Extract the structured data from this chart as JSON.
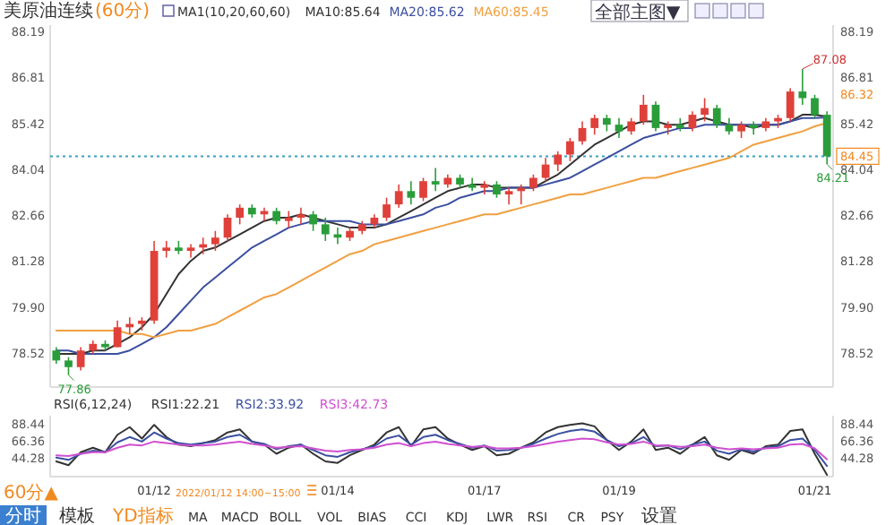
{
  "chart_data": [
    {
      "type": "candlestick",
      "title": "美原油连续",
      "subtitle": "(60分)",
      "legend_title": "MA1(10,20,60,60)",
      "legend": "top",
      "tick_labels": "y",
      "ohlc": [
        [
          78.6,
          78.7,
          78.2,
          78.3
        ],
        [
          78.3,
          78.4,
          77.86,
          78.1
        ],
        [
          78.1,
          78.7,
          78.0,
          78.6
        ],
        [
          78.6,
          78.9,
          78.5,
          78.8
        ],
        [
          78.8,
          78.9,
          78.6,
          78.7
        ],
        [
          78.7,
          79.5,
          78.7,
          79.3
        ],
        [
          79.3,
          79.6,
          79.1,
          79.4
        ],
        [
          79.4,
          79.6,
          79.2,
          79.5
        ],
        [
          79.5,
          81.9,
          79.4,
          81.6
        ],
        [
          81.6,
          81.9,
          81.4,
          81.7
        ],
        [
          81.7,
          81.9,
          81.5,
          81.6
        ],
        [
          81.6,
          81.8,
          81.4,
          81.7
        ],
        [
          81.7,
          82.0,
          81.5,
          81.8
        ],
        [
          81.8,
          82.2,
          81.6,
          82.0
        ],
        [
          82.0,
          82.7,
          81.9,
          82.6
        ],
        [
          82.6,
          83.0,
          82.4,
          82.9
        ],
        [
          82.9,
          83.0,
          82.6,
          82.7
        ],
        [
          82.7,
          82.9,
          82.5,
          82.8
        ],
        [
          82.8,
          82.9,
          82.4,
          82.5
        ],
        [
          82.5,
          82.8,
          82.3,
          82.6
        ],
        [
          82.6,
          82.9,
          82.4,
          82.7
        ],
        [
          82.7,
          82.8,
          82.2,
          82.4
        ],
        [
          82.4,
          82.6,
          81.9,
          82.1
        ],
        [
          82.1,
          82.3,
          81.8,
          82.0
        ],
        [
          82.0,
          82.3,
          81.9,
          82.2
        ],
        [
          82.2,
          82.5,
          82.1,
          82.4
        ],
        [
          82.4,
          82.7,
          82.3,
          82.6
        ],
        [
          82.6,
          83.2,
          82.5,
          83.0
        ],
        [
          83.0,
          83.6,
          82.9,
          83.4
        ],
        [
          83.4,
          83.7,
          83.0,
          83.2
        ],
        [
          83.2,
          83.8,
          83.1,
          83.7
        ],
        [
          83.7,
          84.1,
          83.4,
          83.6
        ],
        [
          83.6,
          83.9,
          83.5,
          83.8
        ],
        [
          83.8,
          83.9,
          83.5,
          83.6
        ],
        [
          83.6,
          83.8,
          83.4,
          83.5
        ],
        [
          83.5,
          83.7,
          83.3,
          83.6
        ],
        [
          83.6,
          83.7,
          83.2,
          83.3
        ],
        [
          83.3,
          83.5,
          83.0,
          83.4
        ],
        [
          83.4,
          83.6,
          83.0,
          83.5
        ],
        [
          83.5,
          83.9,
          83.4,
          83.8
        ],
        [
          83.8,
          84.4,
          83.7,
          84.2
        ],
        [
          84.2,
          84.6,
          84.0,
          84.5
        ],
        [
          84.5,
          85.0,
          84.3,
          84.9
        ],
        [
          84.9,
          85.5,
          84.8,
          85.3
        ],
        [
          85.3,
          85.7,
          85.1,
          85.6
        ],
        [
          85.6,
          85.7,
          85.2,
          85.4
        ],
        [
          85.4,
          85.6,
          85.0,
          85.2
        ],
        [
          85.2,
          85.6,
          85.1,
          85.5
        ],
        [
          85.5,
          86.3,
          85.4,
          86.0
        ],
        [
          86.0,
          86.1,
          85.2,
          85.3
        ],
        [
          85.3,
          85.5,
          85.1,
          85.4
        ],
        [
          85.4,
          85.6,
          85.2,
          85.3
        ],
        [
          85.3,
          85.8,
          85.2,
          85.7
        ],
        [
          85.7,
          86.2,
          85.5,
          85.9
        ],
        [
          85.9,
          86.0,
          85.3,
          85.4
        ],
        [
          85.4,
          85.6,
          85.1,
          85.2
        ],
        [
          85.2,
          85.5,
          85.0,
          85.4
        ],
        [
          85.4,
          85.5,
          85.1,
          85.3
        ],
        [
          85.3,
          85.6,
          85.2,
          85.5
        ],
        [
          85.5,
          85.7,
          85.3,
          85.6
        ],
        [
          85.6,
          86.5,
          85.5,
          86.4
        ],
        [
          86.4,
          87.08,
          86.0,
          86.2
        ],
        [
          86.2,
          86.3,
          85.6,
          85.7
        ],
        [
          85.7,
          85.8,
          84.21,
          84.45
        ]
      ],
      "series": [
        {
          "name": "MA10:85.64",
          "type": "line",
          "color": "#333333",
          "values": [
            78.5,
            78.5,
            78.5,
            78.6,
            78.6,
            78.8,
            79.0,
            79.3,
            79.7,
            80.3,
            80.9,
            81.3,
            81.6,
            81.7,
            81.9,
            82.1,
            82.3,
            82.5,
            82.6,
            82.6,
            82.7,
            82.6,
            82.5,
            82.4,
            82.3,
            82.3,
            82.3,
            82.4,
            82.6,
            82.8,
            83.0,
            83.2,
            83.4,
            83.5,
            83.6,
            83.6,
            83.5,
            83.5,
            83.5,
            83.5,
            83.7,
            83.9,
            84.2,
            84.5,
            84.8,
            85.0,
            85.2,
            85.4,
            85.5,
            85.5,
            85.4,
            85.4,
            85.5,
            85.6,
            85.5,
            85.4,
            85.4,
            85.3,
            85.4,
            85.4,
            85.5,
            85.7,
            85.7,
            85.64
          ]
        },
        {
          "name": "MA20:85.62",
          "type": "line",
          "color": "#3b4fa0",
          "values": [
            78.6,
            78.6,
            78.5,
            78.5,
            78.5,
            78.5,
            78.6,
            78.8,
            79.0,
            79.3,
            79.7,
            80.1,
            80.5,
            80.8,
            81.1,
            81.4,
            81.7,
            81.9,
            82.1,
            82.3,
            82.4,
            82.5,
            82.5,
            82.5,
            82.5,
            82.4,
            82.4,
            82.4,
            82.5,
            82.6,
            82.7,
            82.9,
            83.0,
            83.2,
            83.3,
            83.4,
            83.4,
            83.5,
            83.5,
            83.5,
            83.6,
            83.7,
            83.8,
            84.0,
            84.2,
            84.4,
            84.6,
            84.8,
            85.0,
            85.1,
            85.2,
            85.3,
            85.3,
            85.4,
            85.4,
            85.4,
            85.4,
            85.4,
            85.4,
            85.4,
            85.5,
            85.6,
            85.6,
            85.62
          ]
        },
        {
          "name": "MA60:85.45",
          "type": "line",
          "color": "#f0a040",
          "values": [
            79.2,
            79.2,
            79.2,
            79.2,
            79.2,
            79.2,
            79.1,
            79.1,
            79.0,
            79.1,
            79.2,
            79.2,
            79.3,
            79.4,
            79.6,
            79.8,
            80.0,
            80.2,
            80.3,
            80.5,
            80.7,
            80.9,
            81.1,
            81.3,
            81.5,
            81.6,
            81.8,
            81.9,
            82.0,
            82.1,
            82.2,
            82.3,
            82.4,
            82.5,
            82.6,
            82.7,
            82.7,
            82.8,
            82.9,
            83.0,
            83.1,
            83.2,
            83.3,
            83.3,
            83.4,
            83.5,
            83.6,
            83.7,
            83.8,
            83.8,
            83.9,
            84.0,
            84.1,
            84.2,
            84.3,
            84.4,
            84.6,
            84.8,
            84.9,
            85.0,
            85.1,
            85.2,
            85.35,
            85.45
          ]
        }
      ],
      "ylim": [
        77.5,
        88.4
      ],
      "yticks": [
        78.52,
        {
          "value": 79.9,
          "label": "79.90"
        },
        81.28,
        82.66,
        84.04,
        85.42,
        86.81,
        88.19
      ],
      "y2lim": [
        77.5,
        88.4
      ],
      "y2ticks": [
        78.52,
        {
          "value": 79.9,
          "label": "79.90"
        },
        81.28,
        82.66,
        84.04,
        85.42,
        86.32,
        86.81,
        88.19
      ],
      "ref_lines": [
        {
          "axis": "y2",
          "value": 84.45,
          "label": "84.45",
          "color": "#3a9fc0",
          "line_style": "dotted"
        }
      ],
      "annotations": [
        "87.08",
        "84.21",
        "77.86"
      ]
    },
    {
      "type": "line",
      "legend_title": "RSI(6,12,24)",
      "legend": "top left",
      "categories": [
        null,
        null,
        null,
        null,
        null,
        null,
        null,
        null,
        "01/12",
        null,
        null,
        null,
        null,
        null,
        null,
        null,
        null,
        null,
        null,
        null,
        null,
        null,
        null,
        "01/14",
        null,
        null,
        null,
        null,
        null,
        null,
        null,
        null,
        null,
        null,
        null,
        "01/17",
        null,
        null,
        null,
        null,
        null,
        null,
        null,
        null,
        null,
        null,
        "01/19",
        null,
        null,
        null,
        null,
        null,
        null,
        null,
        null,
        null,
        null,
        null,
        null,
        null,
        null,
        null,
        "01/21",
        null
      ],
      "series": [
        {
          "name": "RSI1:22.21",
          "color": "#333333",
          "values": [
            40,
            35,
            52,
            58,
            52,
            75,
            85,
            70,
            88,
            72,
            62,
            60,
            64,
            68,
            78,
            82,
            66,
            62,
            50,
            58,
            62,
            50,
            40,
            38,
            48,
            55,
            62,
            78,
            85,
            60,
            82,
            85,
            70,
            62,
            55,
            60,
            48,
            50,
            58,
            65,
            78,
            85,
            88,
            90,
            86,
            68,
            55,
            66,
            82,
            55,
            58,
            50,
            62,
            72,
            48,
            42,
            55,
            50,
            60,
            62,
            80,
            82,
            50,
            22.21
          ]
        },
        {
          "name": "RSI2:33.92",
          "color": "#3b4fa0",
          "values": [
            45,
            42,
            50,
            54,
            52,
            65,
            72,
            66,
            78,
            70,
            64,
            62,
            64,
            66,
            72,
            75,
            66,
            63,
            56,
            60,
            62,
            55,
            48,
            46,
            52,
            56,
            60,
            70,
            74,
            62,
            72,
            75,
            68,
            63,
            58,
            61,
            54,
            55,
            58,
            63,
            70,
            76,
            80,
            82,
            79,
            68,
            60,
            64,
            72,
            60,
            61,
            56,
            62,
            66,
            54,
            50,
            56,
            53,
            58,
            60,
            68,
            70,
            55,
            33.92
          ]
        },
        {
          "name": "RSI3:42.73",
          "color": "#d050d0",
          "values": [
            48,
            47,
            50,
            52,
            52,
            58,
            62,
            61,
            66,
            64,
            62,
            61,
            61,
            62,
            64,
            66,
            63,
            61,
            58,
            59,
            60,
            57,
            54,
            53,
            55,
            56,
            58,
            62,
            64,
            60,
            64,
            66,
            63,
            61,
            59,
            60,
            57,
            57,
            58,
            60,
            63,
            66,
            68,
            70,
            69,
            65,
            62,
            63,
            66,
            61,
            61,
            59,
            60,
            62,
            58,
            56,
            57,
            56,
            57,
            58,
            62,
            63,
            57,
            42.73
          ]
        }
      ],
      "ylim": [
        20,
        100
      ],
      "yticks": [
        44.28,
        66.36,
        88.44
      ],
      "y2lim": [
        20,
        100
      ],
      "y2ticks": [
        44.28,
        66.36,
        88.44
      ]
    },
    {
      "type": "other",
      "annotations": [
        "60分▲",
        "2022/01/12 14:00~15:00",
        "分时",
        "模板",
        "YD指标",
        "MA",
        "MACD",
        "BOLL",
        "VOL",
        "BIAS",
        "CCI",
        "KDJ",
        "LWR",
        "RSI",
        "CR",
        "PSY",
        "设置",
        "全部主图▼"
      ]
    }
  ]
}
